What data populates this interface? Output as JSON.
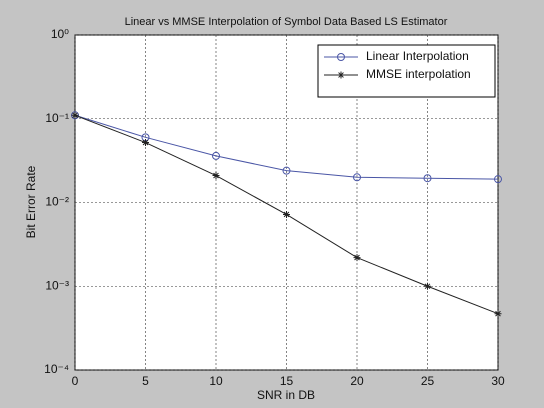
{
  "chart_data": {
    "type": "line",
    "title": "Linear  vs MMSE Interpolation of Symbol Data Based LS Estimator",
    "xlabel": "SNR in DB",
    "ylabel": "Bit Error Rate",
    "x": [
      0,
      5,
      10,
      15,
      20,
      25,
      30
    ],
    "series": [
      {
        "name": "Linear Interpolation",
        "color": "#4a56a6",
        "marker": "circle",
        "values": [
          0.11,
          0.06,
          0.036,
          0.024,
          0.02,
          0.0195,
          0.019
        ]
      },
      {
        "name": "MMSE interpolation",
        "color": "#222222",
        "marker": "star",
        "values": [
          0.11,
          0.052,
          0.021,
          0.0072,
          0.0022,
          0.001,
          0.00047
        ]
      }
    ],
    "xlim": [
      0,
      30
    ],
    "xticks": [
      0,
      5,
      10,
      15,
      20,
      25,
      30
    ],
    "ylim": [
      0.0001,
      1
    ],
    "log_y": true,
    "yticks": [
      {
        "value": 0.0001,
        "label": "10⁻⁴"
      },
      {
        "value": 0.001,
        "label": "10⁻³"
      },
      {
        "value": 0.01,
        "label": "10⁻²"
      },
      {
        "value": 0.1,
        "label": "10⁻¹"
      },
      {
        "value": 1,
        "label": "10⁰"
      }
    ],
    "grid": true,
    "legend": "upper right"
  }
}
